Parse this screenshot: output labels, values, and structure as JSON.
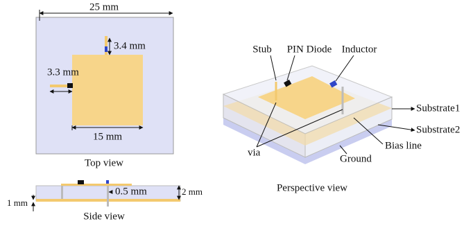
{
  "top_view": {
    "width_label": "25 mm",
    "feed_label": "3.4 mm",
    "stub_label": "3.3 mm",
    "patch_label": "15 mm",
    "caption": "Top view"
  },
  "side_view": {
    "thickness_label": "2 mm",
    "gap_label": "0.5 mm",
    "lower_label": "1 mm",
    "caption": "Side view"
  },
  "perspective_view": {
    "stub": "Stub",
    "diode": "PIN Diode",
    "inductor": "Inductor",
    "substrate1": "Substrate1",
    "substrate2": "Substrate2",
    "bias_line": "Bias line",
    "ground": "Ground",
    "via": "via",
    "caption": "Perspective view"
  }
}
